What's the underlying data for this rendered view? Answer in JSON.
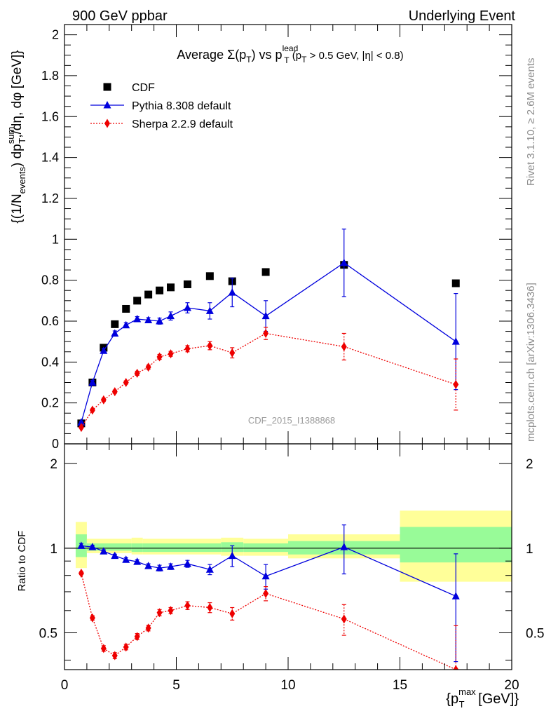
{
  "header": {
    "left": "900 GeV ppbar",
    "right": "Underlying Event"
  },
  "side_text": {
    "rivet": "Rivet 3.1.10, ≥ 2.6M events",
    "mcplots": "mcplots.cern.ch [arXiv:1306.3436]"
  },
  "chart_data": [
    {
      "type": "scatter",
      "title": {
        "pre": "Average ",
        "sigma": "Σ(p",
        "sigma_sub": "T",
        "mid": ") vs p",
        "lead_sup": "lead",
        "lead_sub": "T",
        "tail_a": " (p",
        "tail_sub": "T",
        "tail_b": " > 0.5 GeV, |η| < 0.8)"
      },
      "ylabel": "{(1/N_events) dp_T^sum/dη, dφ [GeV]}",
      "ylabel_parts": {
        "a": "{(1/N",
        "a_sub": "events",
        "b": ") dp",
        "b_sup": "sum",
        "b_sub": "T",
        "c": ",/dη, dφ [GeV]}"
      },
      "xlim": [
        0,
        20
      ],
      "ylim": [
        0,
        2.05
      ],
      "y_ticks": [
        0,
        0.2,
        0.4,
        0.6,
        0.8,
        1.0,
        1.2,
        1.4,
        1.6,
        1.8,
        2.0
      ],
      "y_tick_labels": [
        "0",
        "0.2",
        "0.4",
        "0.6",
        "0.8",
        "1",
        "1.2",
        "1.4",
        "1.6",
        "1.8",
        "2"
      ],
      "watermark": "CDF_2015_I1388868",
      "legend_position": "top-left",
      "series": [
        {
          "name": "CDF",
          "color": "#000000",
          "marker": "square",
          "x": [
            0.75,
            1.25,
            1.75,
            2.25,
            2.75,
            3.25,
            3.75,
            4.25,
            4.75,
            5.5,
            6.5,
            7.5,
            9.0,
            12.5,
            17.5
          ],
          "y": [
            0.1,
            0.3,
            0.47,
            0.585,
            0.66,
            0.7,
            0.73,
            0.75,
            0.765,
            0.78,
            0.82,
            0.795,
            0.84,
            0.875,
            0.785
          ]
        },
        {
          "name": "Pythia 8.308 default",
          "color": "#0000dd",
          "marker": "triangle",
          "line": "solid",
          "x": [
            0.75,
            1.25,
            1.75,
            2.25,
            2.75,
            3.25,
            3.75,
            4.25,
            4.75,
            5.5,
            6.5,
            7.5,
            9.0,
            12.5,
            17.5
          ],
          "y": [
            0.105,
            0.3,
            0.455,
            0.54,
            0.58,
            0.61,
            0.605,
            0.6,
            0.625,
            0.665,
            0.65,
            0.74,
            0.625,
            0.885,
            0.5
          ],
          "err": [
            0.005,
            0.01,
            0.012,
            0.012,
            0.012,
            0.012,
            0.012,
            0.015,
            0.02,
            0.025,
            0.04,
            0.07,
            0.075,
            0.165,
            0.235
          ]
        },
        {
          "name": "Sherpa 2.2.9 default",
          "color": "#ee0000",
          "marker": "diamond",
          "line": "dotted",
          "x": [
            0.75,
            1.25,
            1.75,
            2.25,
            2.75,
            3.25,
            3.75,
            4.25,
            4.75,
            5.5,
            6.5,
            7.5,
            9.0,
            12.5,
            17.5
          ],
          "y": [
            0.08,
            0.165,
            0.215,
            0.255,
            0.3,
            0.345,
            0.375,
            0.425,
            0.44,
            0.465,
            0.48,
            0.445,
            0.54,
            0.475,
            0.29
          ],
          "err": [
            0.004,
            0.006,
            0.008,
            0.008,
            0.008,
            0.01,
            0.01,
            0.012,
            0.012,
            0.015,
            0.02,
            0.025,
            0.03,
            0.065,
            0.125
          ]
        }
      ]
    },
    {
      "type": "scatter",
      "ylabel": "Ratio to CDF",
      "xlabel": "{p_T^max [GeV]}",
      "xlabel_parts": {
        "a": "{p",
        "sup": "max",
        "sub": "T",
        "b": " [GeV]}"
      },
      "xlim": [
        0,
        20
      ],
      "ylim": [
        0.37,
        2.35
      ],
      "x_ticks": [
        0,
        5,
        10,
        15,
        20
      ],
      "x_tick_labels": [
        "0",
        "5",
        "10",
        "15",
        "20"
      ],
      "y_ticks": [
        0.5,
        1,
        2
      ],
      "y_tick_labels": [
        "0.5",
        "1",
        "2"
      ],
      "reference_line": 1,
      "bands": {
        "inner_color": "#98fb98",
        "outer_color": "#ffff99",
        "bins": [
          {
            "x0": 0.5,
            "x1": 1.0,
            "outer": [
              0.85,
              1.24
            ],
            "inner": [
              0.93,
              1.12
            ]
          },
          {
            "x0": 1.0,
            "x1": 3.0,
            "outer": [
              0.96,
              1.08
            ],
            "inner": [
              0.98,
              1.04
            ]
          },
          {
            "x0": 3.0,
            "x1": 3.5,
            "outer": [
              0.95,
              1.09
            ],
            "inner": [
              0.97,
              1.04
            ]
          },
          {
            "x0": 3.5,
            "x1": 7.0,
            "outer": [
              0.95,
              1.08
            ],
            "inner": [
              0.97,
              1.04
            ]
          },
          {
            "x0": 7.0,
            "x1": 8.0,
            "outer": [
              0.94,
              1.09
            ],
            "inner": [
              0.97,
              1.05
            ]
          },
          {
            "x0": 8.0,
            "x1": 10.0,
            "outer": [
              0.94,
              1.08
            ],
            "inner": [
              0.97,
              1.04
            ]
          },
          {
            "x0": 10.0,
            "x1": 15.0,
            "outer": [
              0.92,
              1.12
            ],
            "inner": [
              0.95,
              1.06
            ]
          },
          {
            "x0": 15.0,
            "x1": 20.0,
            "outer": [
              0.76,
              1.36
            ],
            "inner": [
              0.89,
              1.19
            ]
          }
        ]
      },
      "series": [
        {
          "name": "Pythia 8.308 default",
          "color": "#0000dd",
          "marker": "triangle",
          "line": "solid",
          "x": [
            0.75,
            1.25,
            1.75,
            2.25,
            2.75,
            3.25,
            3.75,
            4.25,
            4.75,
            5.5,
            6.5,
            7.5,
            9.0,
            12.5,
            17.5
          ],
          "y": [
            1.02,
            1.01,
            0.975,
            0.94,
            0.91,
            0.895,
            0.865,
            0.85,
            0.86,
            0.88,
            0.84,
            0.94,
            0.795,
            1.01,
            0.675
          ],
          "err": [
            0.02,
            0.015,
            0.012,
            0.012,
            0.015,
            0.015,
            0.015,
            0.02,
            0.02,
            0.025,
            0.035,
            0.08,
            0.08,
            0.2,
            0.28
          ]
        },
        {
          "name": "Sherpa 2.2.9 default",
          "color": "#ee0000",
          "marker": "diamond",
          "line": "dotted",
          "x": [
            0.75,
            1.25,
            1.75,
            2.25,
            2.75,
            3.25,
            3.75,
            4.25,
            4.75,
            5.5,
            6.5,
            7.5,
            9.0,
            12.5,
            17.5
          ],
          "y": [
            0.815,
            0.565,
            0.44,
            0.415,
            0.445,
            0.485,
            0.52,
            0.59,
            0.6,
            0.625,
            0.615,
            0.585,
            0.69,
            0.56,
            0.37
          ],
          "err": [
            0.01,
            0.01,
            0.01,
            0.01,
            0.01,
            0.012,
            0.012,
            0.015,
            0.015,
            0.02,
            0.025,
            0.03,
            0.04,
            0.07,
            0.16
          ]
        }
      ]
    }
  ]
}
